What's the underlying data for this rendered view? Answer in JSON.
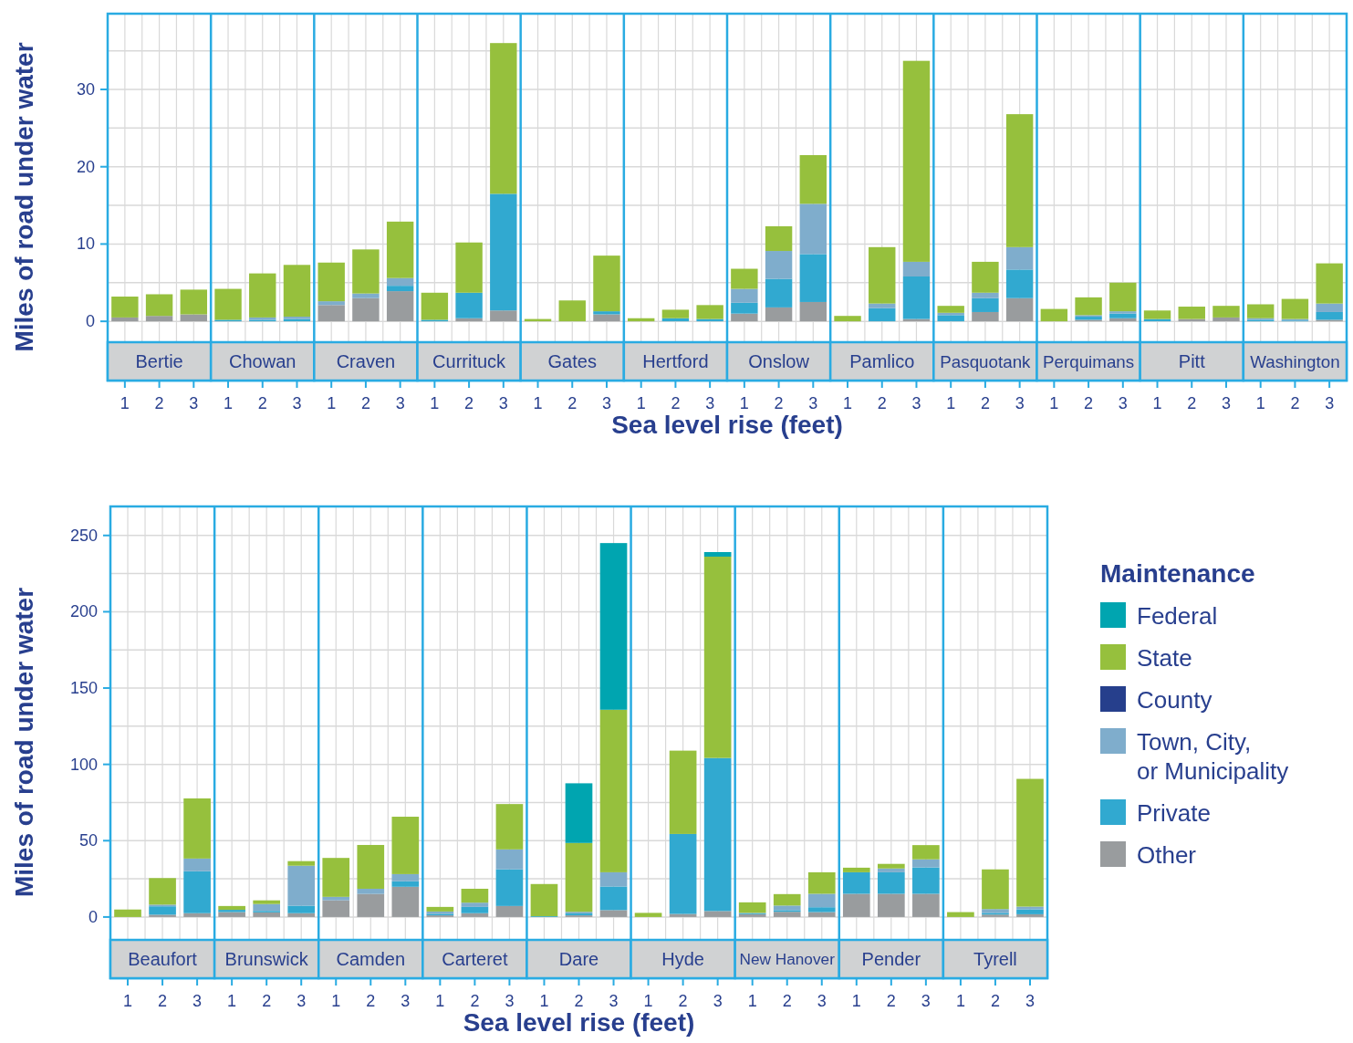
{
  "chart_data": [
    {
      "type": "bar",
      "stacked": true,
      "xlabel": "Sea level rise (feet)",
      "ylabel": "Miles of road under water",
      "categories": [
        "1",
        "2",
        "3",
        "1",
        "2",
        "3",
        "1",
        "2",
        "3",
        "1",
        "2",
        "3",
        "1",
        "2",
        "3",
        "1",
        "2",
        "3",
        "1",
        "2",
        "3",
        "1",
        "2",
        "3",
        "1",
        "2",
        "3",
        "1",
        "2",
        "3",
        "1",
        "2",
        "3",
        "1",
        "2",
        "3"
      ],
      "annotations": [
        "Bertie",
        "Chowan",
        "Craven",
        "Currituck",
        "Gates",
        "Hertford",
        "Onslow",
        "Pamlico",
        "Pasquotank",
        "Perquimans",
        "Pitt",
        "Washington"
      ],
      "ylim": [
        -2.7,
        39.8
      ],
      "yticks": [
        0,
        {
          "value": 5,
          "label": null
        },
        10,
        {
          "value": 15,
          "label": null
        },
        20,
        {
          "value": 25,
          "label": null
        },
        30,
        {
          "value": 35,
          "label": null
        }
      ],
      "grid": true,
      "legend": false,
      "series": [
        {
          "color": "#999c9e",
          "values": [
            0.5,
            0.7,
            0.9,
            null,
            null,
            null,
            2.1,
            3.0,
            3.9,
            null,
            0.4,
            1.4,
            null,
            null,
            0.9,
            null,
            null,
            null,
            1.0,
            1.8,
            2.5,
            null,
            null,
            0.3,
            null,
            1.2,
            3.0,
            null,
            0.2,
            0.4,
            null,
            0.3,
            0.5,
            null,
            null,
            0.2
          ]
        },
        {
          "color": "#31a9d0",
          "values": [
            null,
            null,
            null,
            0.2,
            0.2,
            0.3,
            null,
            null,
            0.7,
            0.2,
            3.3,
            15.1,
            null,
            null,
            0.4,
            null,
            0.4,
            0.3,
            1.4,
            3.7,
            6.2,
            null,
            1.7,
            5.5,
            0.8,
            1.8,
            3.7,
            null,
            0.4,
            0.6,
            0.3,
            null,
            null,
            0.2,
            0.1,
            1.0
          ]
        },
        {
          "color": "#7fadcc",
          "values": [
            null,
            null,
            null,
            null,
            0.3,
            0.3,
            0.5,
            0.6,
            1.0,
            null,
            null,
            null,
            null,
            null,
            null,
            null,
            null,
            null,
            1.8,
            3.6,
            6.5,
            null,
            0.6,
            1.9,
            0.3,
            0.7,
            2.9,
            null,
            0.2,
            0.3,
            null,
            null,
            null,
            0.2,
            0.2,
            1.1
          ]
        },
        {
          "color": "#96c03d",
          "values": [
            2.7,
            2.8,
            3.2,
            4.0,
            5.7,
            6.7,
            5.0,
            5.7,
            7.3,
            3.5,
            6.5,
            19.5,
            0.3,
            2.7,
            7.2,
            0.4,
            1.1,
            1.8,
            2.6,
            3.2,
            6.3,
            0.7,
            7.3,
            26.0,
            0.9,
            4.0,
            17.2,
            1.6,
            2.3,
            3.7,
            1.1,
            1.6,
            1.5,
            1.8,
            2.6,
            5.2
          ]
        }
      ]
    },
    {
      "type": "bar",
      "stacked": true,
      "xlabel": "Sea level rise (feet)",
      "ylabel": "Miles of road under water",
      "legend_title": "Maintenance",
      "categories": [
        "1",
        "2",
        "3",
        "1",
        "2",
        "3",
        "1",
        "2",
        "3",
        "1",
        "2",
        "3",
        "1",
        "2",
        "3",
        "1",
        "2",
        "3",
        "1",
        "2",
        "3",
        "1",
        "2",
        "3",
        "1",
        "2",
        "3"
      ],
      "annotations": [
        "Beaufort",
        "Brunswick",
        "Camden",
        "Carteret",
        "Dare",
        "Hyde",
        "New Hanover",
        "Pender",
        "Tyrell"
      ],
      "ylim": [
        -15,
        269
      ],
      "yticks": [
        0,
        {
          "value": 25,
          "label": null
        },
        50,
        {
          "value": 75,
          "label": null
        },
        100,
        {
          "value": 125,
          "label": null
        },
        150,
        {
          "value": 175,
          "label": null
        },
        200,
        {
          "value": 225,
          "label": null
        },
        250
      ],
      "grid": true,
      "legend": "right",
      "series": [
        {
          "name": "Other",
          "color": "#999c9e",
          "values": [
            null,
            1.5,
            2.5,
            3.2,
            3.0,
            2.5,
            10.9,
            15.1,
            19.8,
            1.1,
            2.5,
            7.2,
            null,
            1.1,
            4.5,
            null,
            2.0,
            3.9,
            1.8,
            3.4,
            3.2,
            15.2,
            15.2,
            15.2,
            null,
            1.6,
            1.8
          ]
        },
        {
          "name": "Private",
          "color": "#31a9d0",
          "values": [
            null,
            5.5,
            27.5,
            1.5,
            1.0,
            4.9,
            null,
            null,
            3.6,
            1.0,
            4.1,
            24.1,
            0.5,
            1.2,
            15.5,
            null,
            52.4,
            100.3,
            0.5,
            1.1,
            3.2,
            14.1,
            14.1,
            17.3,
            null,
            1.1,
            3.2
          ]
        },
        {
          "name": "Town, City, or Municipality",
          "color": "#7fadcc",
          "values": [
            null,
            1.1,
            8.3,
            null,
            4.5,
            26.2,
            2.3,
            3.4,
            4.7,
            1.5,
            2.8,
            13.0,
            null,
            1.1,
            9.3,
            null,
            null,
            null,
            0.4,
            3.0,
            8.8,
            null,
            2.5,
            5.3,
            null,
            2.5,
            1.8
          ]
        },
        {
          "name": "County",
          "color": "#263f8c",
          "values": [
            null,
            null,
            null,
            null,
            null,
            null,
            null,
            null,
            null,
            null,
            null,
            null,
            null,
            null,
            null,
            null,
            null,
            null,
            null,
            null,
            null,
            null,
            null,
            null,
            null,
            null,
            null
          ]
        },
        {
          "name": "State",
          "color": "#96c03d",
          "values": [
            4.9,
            17.4,
            39.4,
            2.5,
            2.4,
            3.0,
            25.5,
            28.7,
            37.6,
            3.0,
            9.1,
            29.7,
            21.1,
            45.1,
            106.5,
            2.7,
            54.6,
            131.9,
            6.9,
            7.5,
            14.1,
            3.0,
            3.0,
            9.3,
            3.2,
            26.0,
            83.7
          ]
        },
        {
          "name": "Federal",
          "color": "#00a5b0",
          "values": [
            null,
            null,
            null,
            null,
            null,
            null,
            null,
            null,
            null,
            null,
            null,
            null,
            null,
            39.1,
            109.2,
            null,
            null,
            3.0,
            null,
            null,
            null,
            null,
            null,
            null,
            null,
            null,
            null
          ]
        }
      ]
    }
  ]
}
